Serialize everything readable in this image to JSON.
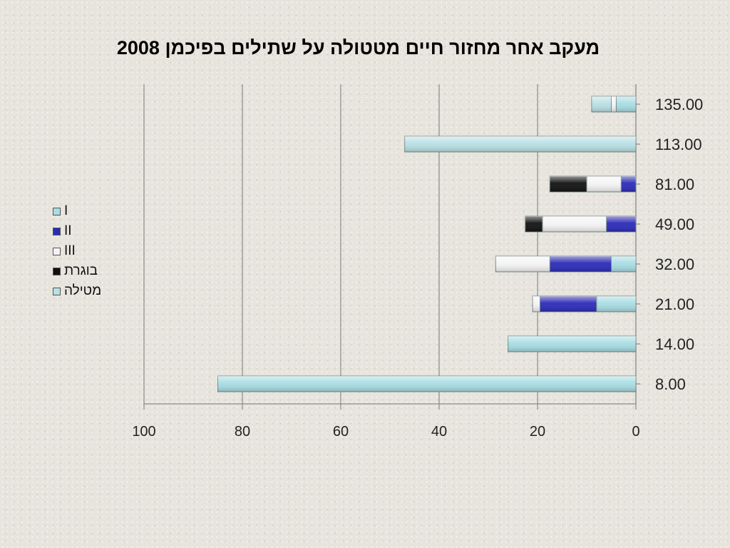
{
  "chart_data": {
    "type": "bar",
    "orientation": "horizontal",
    "stacked": true,
    "title": "מעקב אחר מחזור חיים מטטולה על שתילים בפיכמן 2008",
    "categories": [
      "135.00",
      "113.00",
      "81.00",
      "49.00",
      "32.00",
      "21.00",
      "14.00",
      "8.00"
    ],
    "series": [
      {
        "name": "I",
        "color": "#a8dde3",
        "values": [
          4,
          0,
          0,
          0,
          5,
          8,
          26,
          85
        ]
      },
      {
        "name": "II",
        "color": "#2b2bb8",
        "values": [
          0,
          0,
          3,
          6,
          12.5,
          11.5,
          0,
          0
        ]
      },
      {
        "name": "III",
        "color": "#f4f4f4",
        "values": [
          1,
          0,
          7,
          13,
          11,
          1.5,
          0,
          0
        ]
      },
      {
        "name": "בוגרת",
        "color": "#111111",
        "values": [
          0,
          0,
          7.5,
          3.5,
          0,
          0,
          0,
          0
        ]
      },
      {
        "name": "מטילה",
        "color": "#b9e0e4",
        "values": [
          4,
          47,
          0,
          0,
          0,
          0,
          0,
          0
        ]
      }
    ],
    "xlim": [
      0,
      100
    ],
    "x_ticks": [
      "100",
      "80",
      "60",
      "40",
      "20",
      "0"
    ],
    "x_reversed": true,
    "grid": true,
    "legend_position": "left"
  }
}
